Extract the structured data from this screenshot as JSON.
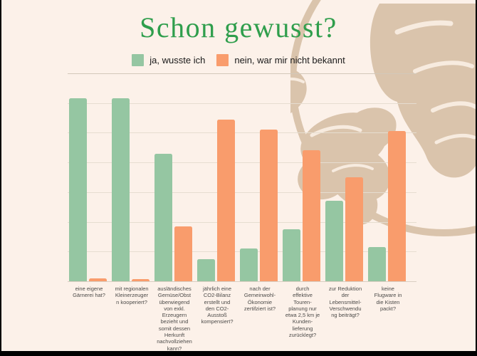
{
  "frame": {
    "background": "#fcf1e9",
    "border_color": "#000000"
  },
  "decoration": {
    "name": "hand-drawn-globe-illustration",
    "color": "#dac4ac",
    "detail_color": "#f7ebdf"
  },
  "chart_data": {
    "type": "bar",
    "title": "Schon gewusst?",
    "title_color": "#2f9e4c",
    "categories": [
      "eine eigene\nGärnerei hat?",
      "mit regionalen\nKleinerzeuger\nn kooperiert?",
      "ausländisches\nGemüse/Obst\nüberwiegend\nvon exkl.\nErzeugern\nbezieht und\nsomit dessen\nHerkunft\nnachvollziehen\nkann?",
      "jährlich eine\nCO2-Bilanz\nerstellt und\nden CO2-\nAusstoß\nkompensiert?",
      "nach der\nGemeinwohl-\nÖkonomie\nzertifziert ist?",
      "durch\neffektive\nTouren-\nplanung nur\netwa 2,5 km je\nKunden-\nlieferung\nzurücklegt?",
      "zur Reduktion\nder\nLebensmittel-\nVerschwendu\nng beiträgt?",
      "keine\nFlugware in\ndie Kisten\npackt?"
    ],
    "series": [
      {
        "name": "ja, wusste ich",
        "color": "#95c6a2",
        "values": [
          61.5,
          61.5,
          43,
          7.5,
          11,
          17.5,
          27,
          11.5
        ]
      },
      {
        "name": "nein, war mir nicht bekannt",
        "color": "#f99c6c",
        "values": [
          1,
          0.7,
          18.5,
          54.5,
          51,
          44,
          35,
          50.5
        ]
      }
    ],
    "xlabel": "",
    "ylabel": "",
    "ylim": [
      0,
      70
    ],
    "grid": true,
    "gridline_interval": 10,
    "axis_tick_labels_visible": false,
    "legend_position": "top-center"
  }
}
